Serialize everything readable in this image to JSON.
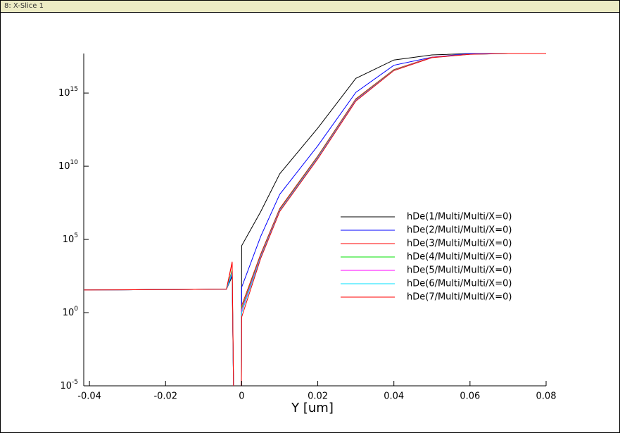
{
  "window_title": "8: X-Slice 1",
  "chart_data": {
    "type": "line",
    "xlabel": "Y [um]",
    "log_y": true,
    "xlim": [
      -0.0415,
      0.08
    ],
    "ylim": [
      1e-05,
      5e+17
    ],
    "xticks": [
      -0.04,
      -0.02,
      0,
      0.02,
      0.04,
      0.06,
      0.08
    ],
    "yticks": [
      {
        "value": 1e-05,
        "label": "10",
        "exponent": "-5"
      },
      {
        "value": 1,
        "label": "10",
        "exponent": "0"
      },
      {
        "value": 100000.0,
        "label": "10",
        "exponent": "5"
      },
      {
        "value": 10000000000.0,
        "label": "10",
        "exponent": "10"
      },
      {
        "value": 1000000000000000.0,
        "label": "10",
        "exponent": "15"
      }
    ],
    "series": [
      {
        "name": "hDe(1/Multi/Multi/X=0)",
        "color": "#000000",
        "x": [
          -0.0415,
          -0.004,
          -0.0025,
          -0.0021,
          -0.0001,
          0,
          0.005,
          0.01,
          0.02,
          0.03,
          0.04,
          0.05,
          0.06,
          0.07
        ],
        "values": [
          35,
          40,
          300,
          1e-06,
          1e-06,
          37000,
          7900000.0,
          3000000000.0,
          4000000000000.0,
          1e+16,
          1.8e+17,
          4e+17,
          5e+17,
          5e+17
        ]
      },
      {
        "name": "hDe(2/Multi/Multi/X=0)",
        "color": "#0000ff",
        "x": [
          -0.0415,
          -0.004,
          -0.0025,
          -0.0021,
          -0.0001,
          0,
          0.005,
          0.01,
          0.02,
          0.03,
          0.04,
          0.05,
          0.06,
          0.07
        ],
        "values": [
          35,
          40,
          400,
          1e-06,
          1e-06,
          54,
          160000,
          120000000.0,
          250000000000.0,
          1100000000000000.0,
          7.9e+16,
          2.8e+17,
          5e+17,
          5e+17
        ]
      },
      {
        "name": "hDe(3/Multi/Multi/X=0)",
        "color": "#ff0000",
        "x": [
          -0.0415,
          -0.004,
          -0.0025,
          -0.0021,
          -0.0001,
          0,
          0.005,
          0.01,
          0.02,
          0.03,
          0.04,
          0.05,
          0.06,
          0.07
        ],
        "values": [
          35,
          40,
          3000,
          1e-06,
          1e-06,
          3,
          10000,
          13000000.0,
          50000000000.0,
          400000000000000.0,
          4e+16,
          2.8e+17,
          4.5e+17,
          5e+17
        ]
      },
      {
        "name": "hDe(4/Multi/Multi/X=0)",
        "color": "#00e000",
        "x": [
          -0.0415,
          -0.004,
          -0.0025,
          -0.0021,
          -0.0001,
          0,
          0.005,
          0.01,
          0.02,
          0.03,
          0.04,
          0.05,
          0.06,
          0.07
        ],
        "values": [
          35,
          40,
          800,
          1e-06,
          1e-06,
          2,
          8000,
          11000000.0,
          45000000000.0,
          360000000000000.0,
          3.8e+16,
          2.7e+17,
          4.5e+17,
          5e+17
        ]
      },
      {
        "name": "hDe(5/Multi/Multi/X=0)",
        "color": "#ff00ff",
        "x": [
          -0.0415,
          -0.004,
          -0.0025,
          -0.0021,
          -0.0001,
          0,
          0.005,
          0.01,
          0.02,
          0.03,
          0.04,
          0.05,
          0.06,
          0.07
        ],
        "values": [
          35,
          40,
          600,
          1e-06,
          1e-06,
          1.5,
          7000,
          10000000.0,
          40000000000.0,
          330000000000000.0,
          3.6e+16,
          2.7e+17,
          4.5e+17,
          5e+17
        ]
      },
      {
        "name": "hDe(6/Multi/Multi/X=0)",
        "color": "#00e0ff",
        "x": [
          -0.0415,
          -0.004,
          -0.0025,
          -0.0021,
          -0.0001,
          0,
          0.005,
          0.01,
          0.02,
          0.03,
          0.04,
          0.05,
          0.06,
          0.07
        ],
        "values": [
          35,
          40,
          500,
          1e-06,
          1e-06,
          1,
          6000,
          9000000.0,
          36000000000.0,
          300000000000000.0,
          3.5e+16,
          2.6e+17,
          4.4e+17,
          5e+17
        ]
      },
      {
        "name": "hDe(7/Multi/Multi/X=0)",
        "color": "#ff0000",
        "x": [
          -0.0415,
          -0.004,
          -0.0025,
          -0.0021,
          -0.0001,
          0,
          0.005,
          0.01,
          0.02,
          0.03,
          0.04,
          0.05,
          0.06,
          0.07,
          0.08
        ],
        "values": [
          35,
          40,
          2500,
          1e-06,
          1e-06,
          0.5,
          5000,
          8000000.0,
          32000000000.0,
          280000000000000.0,
          3.4e+16,
          2.6e+17,
          4.4e+17,
          5e+17,
          5e+17
        ]
      }
    ]
  }
}
